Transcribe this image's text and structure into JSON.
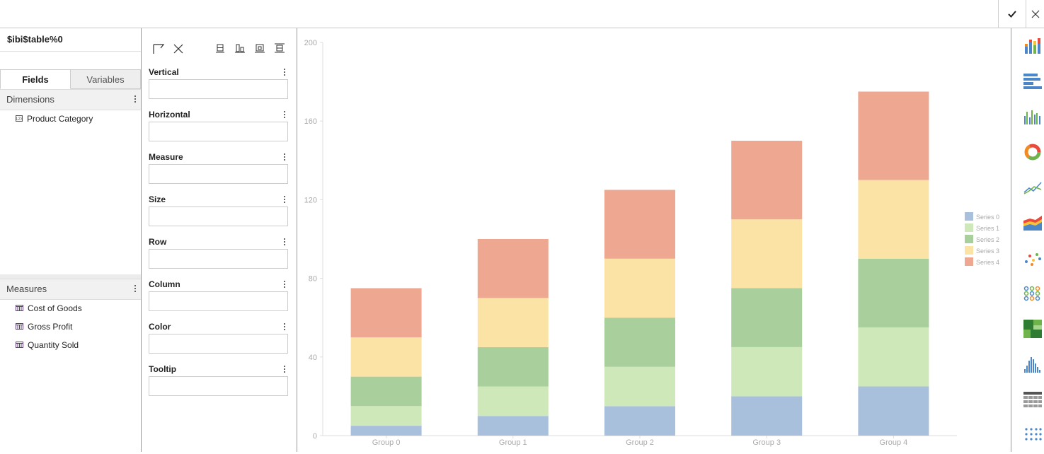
{
  "topbar": {
    "confirm_icon": "checkmark-icon",
    "close_icon": "close-icon"
  },
  "source": {
    "title": "$ibi$table%0"
  },
  "tabs": [
    {
      "label": "Fields",
      "active": true
    },
    {
      "label": "Variables",
      "active": false
    }
  ],
  "dimensions": {
    "header": "Dimensions",
    "items": [
      {
        "label": "Product Category",
        "icon": "dimension-field-icon"
      }
    ]
  },
  "measures": {
    "header": "Measures",
    "items": [
      {
        "label": "Cost of Goods",
        "icon": "measure-field-icon"
      },
      {
        "label": "Gross Profit",
        "icon": "measure-field-icon"
      },
      {
        "label": "Quantity Sold",
        "icon": "measure-field-icon"
      }
    ]
  },
  "toolbar": {
    "icons": [
      "swap-axes-icon",
      "clear-icon",
      "align-top-icon",
      "align-bars-icon",
      "align-center-icon",
      "align-distribute-icon"
    ]
  },
  "buckets": [
    {
      "label": "Vertical"
    },
    {
      "label": "Horizontal"
    },
    {
      "label": "Measure"
    },
    {
      "label": "Size"
    },
    {
      "label": "Row"
    },
    {
      "label": "Column"
    },
    {
      "label": "Color"
    },
    {
      "label": "Tooltip"
    }
  ],
  "chart_types": [
    "stacked-bar-chart-icon",
    "horizontal-bar-chart-icon",
    "grouped-bar-chart-icon",
    "donut-chart-icon",
    "line-chart-icon",
    "area-chart-icon",
    "scatter-chart-icon",
    "bubble-matrix-icon",
    "treemap-icon",
    "histogram-icon",
    "table-grid-icon",
    "dot-matrix-icon"
  ],
  "colors": {
    "series": [
      "#a8c0dc",
      "#cfe8b9",
      "#a8cf9c",
      "#fbe3a6",
      "#eea891"
    ],
    "axis_text": "#aaaaaa"
  },
  "chart_data": {
    "type": "bar",
    "stacked": true,
    "categories": [
      "Group 0",
      "Group 1",
      "Group 2",
      "Group 3",
      "Group 4"
    ],
    "series": [
      {
        "name": "Series 0",
        "values": [
          5,
          10,
          15,
          20,
          25
        ]
      },
      {
        "name": "Series 1",
        "values": [
          10,
          15,
          20,
          25,
          30
        ]
      },
      {
        "name": "Series 2",
        "values": [
          15,
          20,
          25,
          30,
          35
        ]
      },
      {
        "name": "Series 3",
        "values": [
          20,
          25,
          30,
          35,
          40
        ]
      },
      {
        "name": "Series 4",
        "values": [
          25,
          30,
          35,
          40,
          45
        ]
      }
    ],
    "yticks": [
      "0",
      "40",
      "80",
      "120",
      "160",
      "200"
    ],
    "ylim": [
      0,
      200
    ],
    "legend": "right",
    "grid": false
  }
}
